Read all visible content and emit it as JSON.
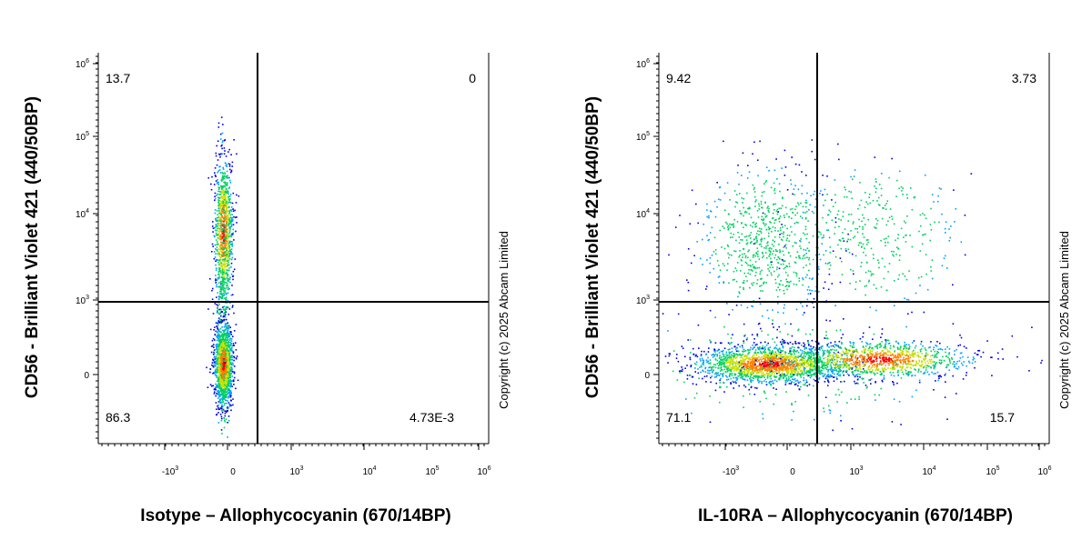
{
  "panels": [
    {
      "y_label": "CD56 - Brilliant Violet 421  (440/50BP)",
      "x_label": "Isotype – Allophycocyanin (670/14BP)",
      "copyright": "Copyright (c) 2025 Abcam Limited",
      "y_ticks": [
        {
          "base": "10",
          "exp": "6"
        },
        {
          "base": "10",
          "exp": "5"
        },
        {
          "base": "10",
          "exp": "4"
        },
        {
          "base": "10",
          "exp": "3"
        },
        {
          "base": "0"
        }
      ],
      "x_ticks": [
        {
          "base": "-10",
          "exp": "3"
        },
        {
          "base": "0"
        },
        {
          "base": "10",
          "exp": "3"
        },
        {
          "base": "10",
          "exp": "4"
        },
        {
          "base": "10",
          "exp": "5"
        },
        {
          "base": "10",
          "exp": "6"
        }
      ],
      "quadrants": {
        "upper_left": "13.7",
        "upper_right": "0",
        "lower_left": "86.3",
        "lower_right": "4.73E-3"
      }
    },
    {
      "y_label": "CD56 - Brilliant Violet 421  (440/50BP)",
      "x_label": "IL-10RA – Allophycocyanin (670/14BP)",
      "copyright": "Copyright (c) 2025 Abcam Limited",
      "y_ticks": [
        {
          "base": "10",
          "exp": "6"
        },
        {
          "base": "10",
          "exp": "5"
        },
        {
          "base": "10",
          "exp": "4"
        },
        {
          "base": "10",
          "exp": "3"
        },
        {
          "base": "0"
        }
      ],
      "x_ticks": [
        {
          "base": "-10",
          "exp": "3"
        },
        {
          "base": "0"
        },
        {
          "base": "10",
          "exp": "3"
        },
        {
          "base": "10",
          "exp": "4"
        },
        {
          "base": "10",
          "exp": "5"
        },
        {
          "base": "10",
          "exp": "6"
        }
      ],
      "quadrants": {
        "upper_left": "9.42",
        "upper_right": "3.73",
        "lower_left": "71.1",
        "lower_right": "15.7"
      }
    }
  ]
}
